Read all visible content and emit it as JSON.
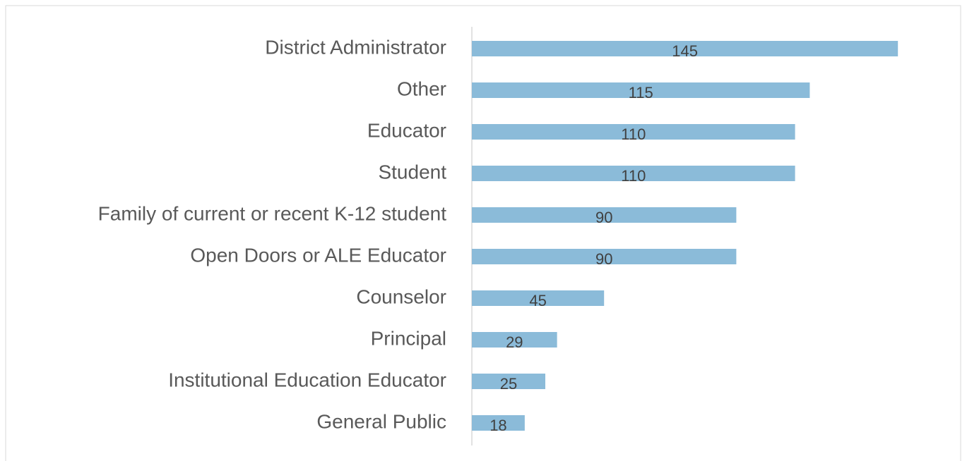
{
  "chart_data": {
    "type": "bar",
    "orientation": "horizontal",
    "categories": [
      "District Administrator",
      "Other",
      "Educator",
      "Student",
      "Family of current or recent K-12 student",
      "Open Doors or ALE Educator",
      "Counselor",
      "Principal",
      "Institutional Education Educator",
      "General Public"
    ],
    "values": [
      145,
      115,
      110,
      110,
      90,
      90,
      45,
      29,
      25,
      18
    ],
    "color": "#8bbbd9"
  }
}
